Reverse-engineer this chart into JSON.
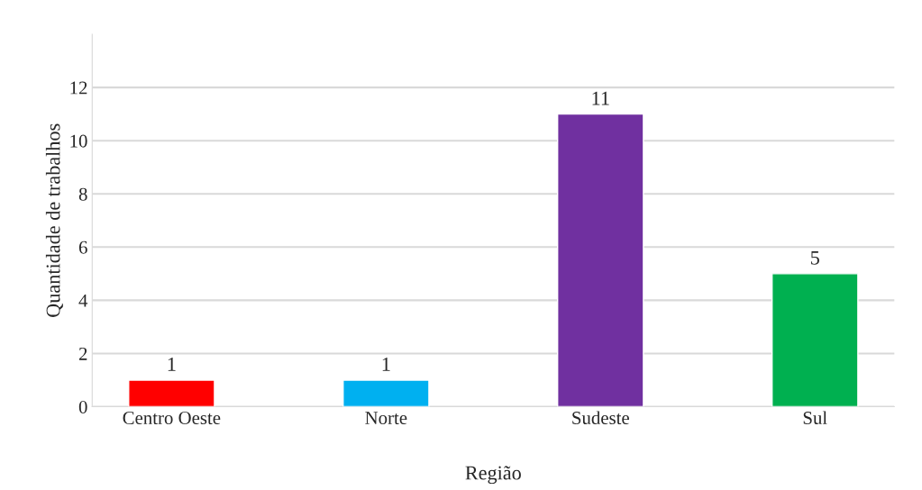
{
  "chart_data": {
    "type": "bar",
    "xlabel": "Região",
    "ylabel": "Quantidade de trabalhos",
    "categories": [
      "Centro Oeste",
      "Norte",
      "Sudeste",
      "Sul"
    ],
    "values": [
      1,
      1,
      11,
      5
    ],
    "colors": [
      "#ff0000",
      "#00b0f0",
      "#7030a0",
      "#00b050"
    ],
    "ylim": [
      0,
      14
    ],
    "yticks": [
      0,
      2,
      4,
      6,
      8,
      10,
      12
    ],
    "grid": "y",
    "data_labels": true
  }
}
